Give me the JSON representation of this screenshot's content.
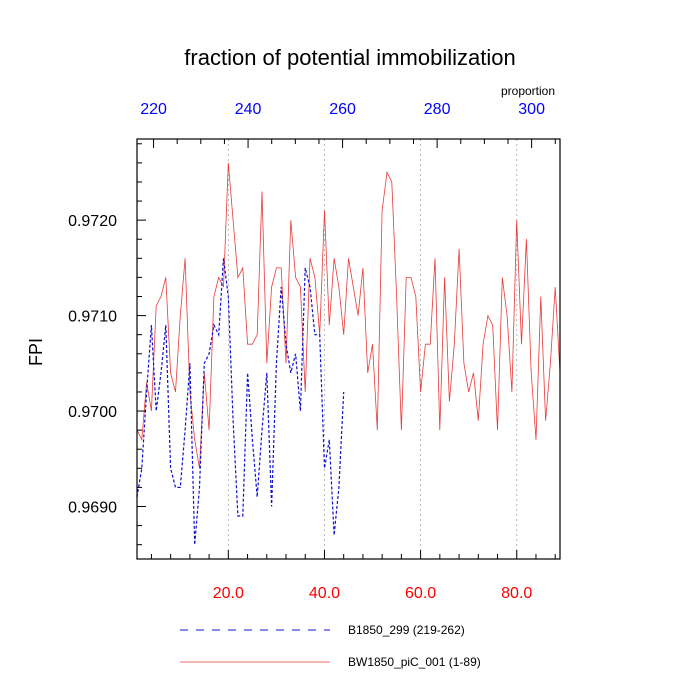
{
  "chart_data": {
    "type": "line",
    "title": "fraction of potential immobilization",
    "ylabel": "FPI",
    "top_axis_label": "proportion",
    "xlim": [
      1,
      89
    ],
    "ylim": [
      0.96845,
      0.97285
    ],
    "top_xlim": [
      216.5,
      306
    ],
    "bottom_ticks": [
      "20.0",
      "40.0",
      "60.0",
      "80.0"
    ],
    "bottom_tick_values": [
      20,
      40,
      60,
      80
    ],
    "top_ticks": [
      "220",
      "240",
      "260",
      "280",
      "300"
    ],
    "top_tick_values": [
      220,
      240,
      260,
      280,
      300
    ],
    "y_ticks": [
      "0.9690",
      "0.9700",
      "0.9710",
      "0.9720"
    ],
    "y_tick_values": [
      0.969,
      0.97,
      0.971,
      0.972
    ],
    "colors": {
      "red": "#ff0000",
      "blue": "#0000ff",
      "series_red": "#e83a3a",
      "series_blue": "#1010d0"
    },
    "series": [
      {
        "name": "B1850_299 (219-262)",
        "color": "#1010d0",
        "dash": "3,2",
        "x_start": 1,
        "values": [
          0.9691,
          0.9694,
          0.9702,
          0.9709,
          0.97,
          0.9704,
          0.9709,
          0.9694,
          0.9692,
          0.9692,
          0.9698,
          0.9705,
          0.9686,
          0.9692,
          0.9705,
          0.9706,
          0.9709,
          0.9708,
          0.9716,
          0.9712,
          0.9699,
          0.9689,
          0.9689,
          0.9704,
          0.9697,
          0.9691,
          0.9698,
          0.9704,
          0.969,
          0.9705,
          0.9713,
          0.9707,
          0.9704,
          0.9706,
          0.97,
          0.9715,
          0.9713,
          0.9708,
          0.9708,
          0.9694,
          0.9697,
          0.9687,
          0.9692,
          0.9702
        ]
      },
      {
        "name": "BW1850_piC_001 (1-89)",
        "color": "#e83a3a",
        "dash": "",
        "x_start": 1,
        "values": [
          0.9698,
          0.9697,
          0.9703,
          0.97,
          0.9711,
          0.9712,
          0.9714,
          0.9704,
          0.9702,
          0.971,
          0.9716,
          0.9702,
          0.9697,
          0.9694,
          0.9704,
          0.9698,
          0.9712,
          0.9714,
          0.9713,
          0.9726,
          0.972,
          0.9714,
          0.9715,
          0.9707,
          0.9707,
          0.9708,
          0.9723,
          0.9705,
          0.9713,
          0.9715,
          0.9715,
          0.9705,
          0.972,
          0.9714,
          0.9713,
          0.9702,
          0.9716,
          0.9714,
          0.9708,
          0.9721,
          0.9709,
          0.9716,
          0.9713,
          0.9708,
          0.9716,
          0.9713,
          0.971,
          0.9715,
          0.9704,
          0.9707,
          0.9698,
          0.9721,
          0.9725,
          0.9724,
          0.9712,
          0.9698,
          0.9714,
          0.9714,
          0.9712,
          0.9702,
          0.9707,
          0.9707,
          0.9716,
          0.9698,
          0.9714,
          0.9701,
          0.9707,
          0.9717,
          0.9705,
          0.9702,
          0.9704,
          0.9699,
          0.9707,
          0.971,
          0.9709,
          0.9698,
          0.9714,
          0.971,
          0.9702,
          0.972,
          0.9707,
          0.9718,
          0.9704,
          0.9697,
          0.9712,
          0.9699,
          0.9705,
          0.9713,
          0.9704
        ]
      }
    ]
  }
}
